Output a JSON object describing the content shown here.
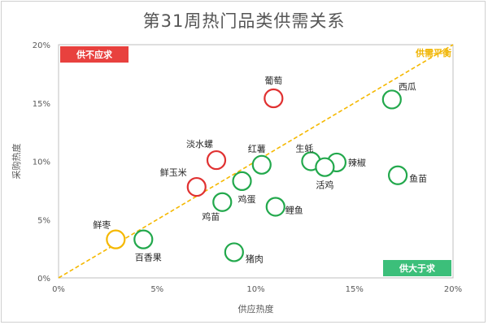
{
  "chart_data": {
    "type": "scatter",
    "title": "第31周热门品类供需关系",
    "xlabel": "供应热度",
    "ylabel": "采购热度",
    "xlim": [
      0,
      20
    ],
    "ylim": [
      0,
      20
    ],
    "xticks": [
      "0%",
      "5%",
      "10%",
      "15%",
      "20%"
    ],
    "yticks": [
      "0%",
      "5%",
      "10%",
      "15%",
      "20%"
    ],
    "grid": false,
    "series": [
      {
        "color": "#e03131",
        "points": [
          {
            "name": "葡萄",
            "x": 10.9,
            "y": 15.4
          },
          {
            "name": "淡水螺",
            "x": 8.0,
            "y": 10.1
          },
          {
            "name": "鲜玉米",
            "x": 7.0,
            "y": 7.8
          }
        ]
      },
      {
        "color": "#f5b800",
        "points": [
          {
            "name": "鲜枣",
            "x": 2.9,
            "y": 3.3
          }
        ]
      },
      {
        "color": "#22a84c",
        "points": [
          {
            "name": "西瓜",
            "x": 16.9,
            "y": 15.3
          },
          {
            "name": "红薯",
            "x": 10.3,
            "y": 9.7
          },
          {
            "name": "生蚝",
            "x": 12.8,
            "y": 10.0
          },
          {
            "name": "辣椒",
            "x": 14.1,
            "y": 9.9
          },
          {
            "name": "活鸡",
            "x": 13.5,
            "y": 9.5
          },
          {
            "name": "鱼苗",
            "x": 17.2,
            "y": 8.8
          },
          {
            "name": "鸡蛋",
            "x": 9.3,
            "y": 8.3
          },
          {
            "name": "鸡苗",
            "x": 8.3,
            "y": 6.5
          },
          {
            "name": "鲤鱼",
            "x": 11.0,
            "y": 6.1
          },
          {
            "name": "百香果",
            "x": 4.3,
            "y": 3.3
          },
          {
            "name": "猪肉",
            "x": 8.9,
            "y": 2.2
          }
        ]
      }
    ],
    "trend_line": {
      "label": "供需平衡",
      "from": [
        0,
        0
      ],
      "to": [
        20,
        20
      ],
      "color": "#f5b800"
    },
    "zones": [
      {
        "label": "供不应求",
        "placement": "top-left",
        "color": "#e8413e"
      },
      {
        "label": "供大于求",
        "placement": "bottom-right",
        "color": "#3cbf7a"
      }
    ]
  }
}
